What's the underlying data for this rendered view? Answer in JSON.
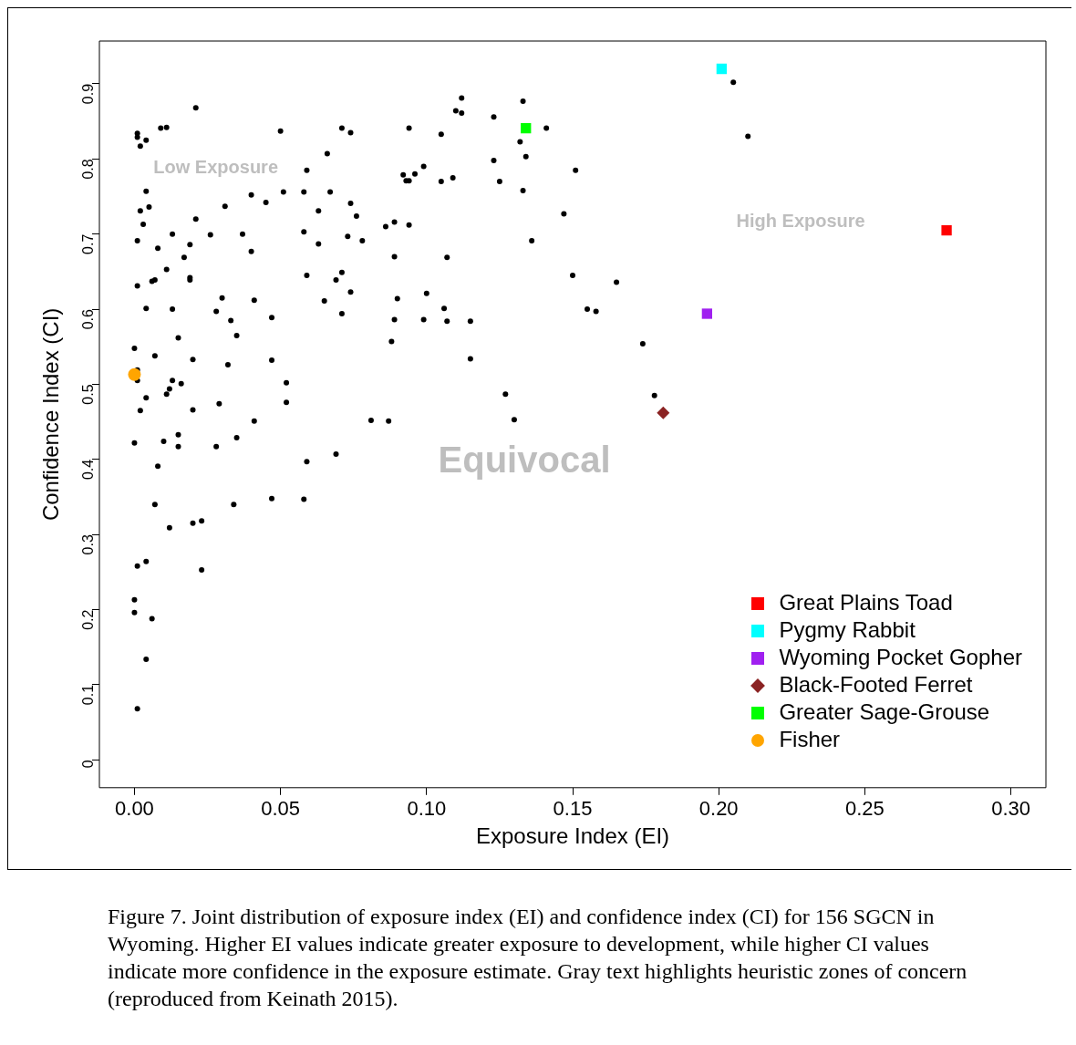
{
  "chart_data": {
    "type": "scatter",
    "xlabel": "Exposure Index (EI)",
    "ylabel": "Confidence Index (CI)",
    "xlim": [
      -0.012,
      0.312
    ],
    "ylim": [
      -0.037,
      0.957
    ],
    "xticks": [
      {
        "value": 0,
        "label": "0.00"
      },
      {
        "value": 0.05,
        "label": "0.05"
      },
      {
        "value": 0.1,
        "label": "0.10"
      },
      {
        "value": 0.15,
        "label": "0.15"
      },
      {
        "value": 0.2,
        "label": "0.20"
      },
      {
        "value": 0.25,
        "label": "0.25"
      },
      {
        "value": 0.3,
        "label": "0.30"
      }
    ],
    "yticks": [
      0,
      0.1,
      0.2,
      0.3,
      0.4,
      0.5,
      0.6,
      0.7,
      0.8,
      0.9
    ],
    "grid": false,
    "legend": "bottom right",
    "series": [
      {
        "color": "#000000",
        "marker": "circle",
        "x": [
          0.001,
          0.001,
          0.004,
          0.002,
          0.009,
          0.011,
          0.021,
          0.05,
          0.071,
          0.074,
          0.066,
          0.059,
          0.004,
          0.002,
          0.005,
          0.003,
          0.001,
          0.008,
          0.013,
          0.019,
          0.006,
          0.007,
          0.011,
          0.017,
          0.019,
          0.019,
          0.021,
          0.026,
          0.031,
          0.04,
          0.045,
          0.051,
          0.058,
          0.063,
          0.067,
          0.074,
          0.076,
          0.073,
          0.078,
          0.063,
          0.058,
          0.059,
          0.071,
          0.069,
          0.074,
          0.065,
          0.071,
          0.04,
          0.037,
          0.001,
          0.004,
          0.013,
          0.015,
          0.03,
          0.028,
          0.033,
          0.035,
          0.041,
          0.047,
          0.007,
          0.0,
          0.001,
          0.001,
          0.02,
          0.013,
          0.016,
          0.012,
          0.011,
          0.004,
          0.002,
          0.02,
          0.029,
          0.032,
          0.041,
          0.047,
          0.052,
          0.052,
          0.01,
          0.015,
          0.015,
          0.0,
          0.028,
          0.035,
          0.008,
          0.007,
          0.034,
          0.012,
          0.02,
          0.023,
          0.047,
          0.058,
          0.059,
          0.069,
          0.001,
          0.004,
          0.023,
          0.0,
          0.0,
          0.006,
          0.004,
          0.001,
          0.112,
          0.11,
          0.112,
          0.133,
          0.123,
          0.105,
          0.141,
          0.132,
          0.134,
          0.123,
          0.094,
          0.096,
          0.099,
          0.092,
          0.093,
          0.094,
          0.105,
          0.109,
          0.125,
          0.133,
          0.151,
          0.147,
          0.136,
          0.089,
          0.094,
          0.086,
          0.089,
          0.107,
          0.15,
          0.155,
          0.158,
          0.165,
          0.1,
          0.09,
          0.106,
          0.107,
          0.099,
          0.089,
          0.088,
          0.115,
          0.115,
          0.127,
          0.081,
          0.087,
          0.13,
          0.174,
          0.178,
          0.205,
          0.21
        ],
        "values": [
          0.834,
          0.829,
          0.825,
          0.817,
          0.841,
          0.842,
          0.868,
          0.837,
          0.841,
          0.835,
          0.807,
          0.785,
          0.757,
          0.731,
          0.736,
          0.713,
          0.691,
          0.681,
          0.7,
          0.686,
          0.637,
          0.639,
          0.653,
          0.669,
          0.642,
          0.639,
          0.72,
          0.699,
          0.737,
          0.752,
          0.742,
          0.756,
          0.756,
          0.731,
          0.756,
          0.741,
          0.724,
          0.697,
          0.691,
          0.687,
          0.703,
          0.645,
          0.649,
          0.639,
          0.623,
          0.611,
          0.594,
          0.677,
          0.7,
          0.631,
          0.601,
          0.6,
          0.562,
          0.615,
          0.597,
          0.585,
          0.565,
          0.612,
          0.589,
          0.538,
          0.548,
          0.519,
          0.505,
          0.533,
          0.505,
          0.501,
          0.494,
          0.487,
          0.482,
          0.465,
          0.466,
          0.474,
          0.526,
          0.451,
          0.532,
          0.502,
          0.476,
          0.424,
          0.433,
          0.417,
          0.422,
          0.417,
          0.429,
          0.391,
          0.34,
          0.34,
          0.309,
          0.315,
          0.318,
          0.348,
          0.347,
          0.397,
          0.407,
          0.258,
          0.264,
          0.253,
          0.213,
          0.196,
          0.188,
          0.134,
          0.068,
          0.881,
          0.864,
          0.861,
          0.877,
          0.856,
          0.833,
          0.841,
          0.823,
          0.803,
          0.798,
          0.841,
          0.78,
          0.79,
          0.779,
          0.771,
          0.771,
          0.77,
          0.775,
          0.77,
          0.758,
          0.785,
          0.727,
          0.691,
          0.716,
          0.712,
          0.71,
          0.67,
          0.669,
          0.645,
          0.6,
          0.597,
          0.636,
          0.621,
          0.614,
          0.601,
          0.584,
          0.586,
          0.586,
          0.557,
          0.584,
          0.534,
          0.487,
          0.452,
          0.451,
          0.453,
          0.554,
          0.485,
          0.902,
          0.83
        ]
      },
      {
        "name": "Great Plains Toad",
        "color": "#ff0000",
        "marker": "square",
        "x": [
          0.278
        ],
        "values": [
          0.705
        ]
      },
      {
        "name": "Pygmy Rabbit",
        "color": "#00ffff",
        "marker": "square",
        "x": [
          0.201
        ],
        "values": [
          0.92
        ]
      },
      {
        "name": "Wyoming Pocket Gopher",
        "color": "#a020f0",
        "marker": "square",
        "x": [
          0.196
        ],
        "values": [
          0.594
        ]
      },
      {
        "name": "Black-Footed Ferret",
        "color": "#8b2323",
        "marker": "diamond",
        "x": [
          0.181
        ],
        "values": [
          0.462
        ]
      },
      {
        "name": "Greater Sage-Grouse",
        "color": "#00ff00",
        "marker": "square",
        "x": [
          0.134
        ],
        "values": [
          0.841
        ]
      },
      {
        "name": "Fisher",
        "color": "#ffa500",
        "marker": "circle",
        "x": [
          0.0
        ],
        "values": [
          0.513
        ]
      }
    ],
    "annotations": [
      "Low Exposure",
      "High Exposure",
      "Equivocal",
      "Figure 7. Joint distribution of exposure index (EI) and confidence index (CI) for 156 SGCN in Wyoming. Higher EI values indicate greater exposure to development, while higher CI values indicate more confidence in the exposure estimate. Gray text highlights heuristic zones of concern (reproduced from Keinath 2015)."
    ]
  }
}
